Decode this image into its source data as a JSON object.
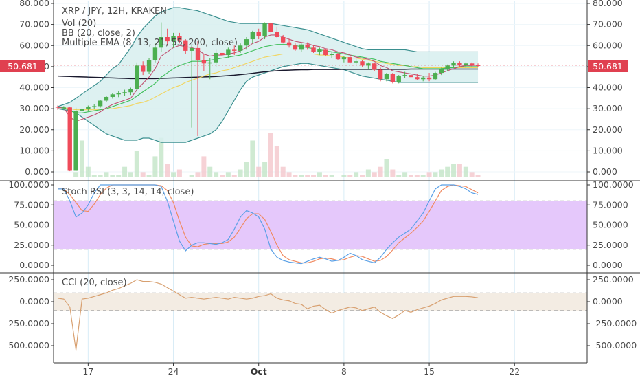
{
  "chart_data": {
    "type": "candlestick",
    "colors": {
      "up": "#4caf50",
      "down": "#ef4b5a",
      "bb": "#3a8f8f",
      "bb_fill": "#d7efee",
      "stoch_k": "#5aa0e6",
      "stoch_d": "#f08a60",
      "stoch_band": "#e5c8fb",
      "cci": "#d8a070",
      "cci_band": "#f3ece3",
      "price_line": "#e04050"
    },
    "main": {
      "title": "XRP / JPY, 12H, KRAKEN",
      "indicators": [
        "Vol (20)",
        "BB (20, close, 2)",
        "Multiple EMA (8, 13, 21, 55, 200, close)"
      ],
      "ylim": [
        -3,
        80
      ],
      "yticks": [
        "80.000",
        "70.000",
        "60.000",
        "50.000",
        "40.000",
        "30.000",
        "20.000",
        "10.000",
        "0.000"
      ],
      "last_price": "50.681",
      "last_price_value": 50.681,
      "candles": [
        [
          31.0,
          31.5,
          29.5,
          30.5
        ],
        [
          30.5,
          31.2,
          29.8,
          30.6
        ],
        [
          30.6,
          31.0,
          0.3,
          0.5
        ],
        [
          0.5,
          30.5,
          0.3,
          29.0
        ],
        [
          29.0,
          30.5,
          28.0,
          30.0
        ],
        [
          30.0,
          31.5,
          29.0,
          31.0
        ],
        [
          31.0,
          32.0,
          30.0,
          31.2
        ],
        [
          31.2,
          34.0,
          30.5,
          33.8
        ],
        [
          33.8,
          36.0,
          33.0,
          35.6
        ],
        [
          35.6,
          37.5,
          34.8,
          36.8
        ],
        [
          36.8,
          38.5,
          35.5,
          37.4
        ],
        [
          37.4,
          39.0,
          36.0,
          37.8
        ],
        [
          37.8,
          40.0,
          36.5,
          39.5
        ],
        [
          39.5,
          52.0,
          38.0,
          50.5
        ],
        [
          50.5,
          52.5,
          46.0,
          47.5
        ],
        [
          47.5,
          54.0,
          46.5,
          53.0
        ],
        [
          53.0,
          61.0,
          52.0,
          59.0
        ],
        [
          59.0,
          71.0,
          57.0,
          64.0
        ],
        [
          64.0,
          68.0,
          60.0,
          62.0
        ],
        [
          62.0,
          66.0,
          59.0,
          64.5
        ],
        [
          64.5,
          66.0,
          61.0,
          62.5
        ],
        [
          62.5,
          63.0,
          56.0,
          57.5
        ],
        [
          57.5,
          60.0,
          21.0,
          58.8
        ],
        [
          58.8,
          62.0,
          17.0,
          53.0
        ],
        [
          53.0,
          56.0,
          48.0,
          51.5
        ],
        [
          51.5,
          54.0,
          44.0,
          52.0
        ],
        [
          52.0,
          58.0,
          50.0,
          56.5
        ],
        [
          56.5,
          60.0,
          54.0,
          55.5
        ],
        [
          55.5,
          59.0,
          54.0,
          58.0
        ],
        [
          58.0,
          60.0,
          55.5,
          57.5
        ],
        [
          57.5,
          61.0,
          56.5,
          60.0
        ],
        [
          60.0,
          64.0,
          58.0,
          63.0
        ],
        [
          63.0,
          67.0,
          61.0,
          66.5
        ],
        [
          66.5,
          68.0,
          63.0,
          64.5
        ],
        [
          64.5,
          71.0,
          63.0,
          70.5
        ],
        [
          70.5,
          71.0,
          65.0,
          66.5
        ],
        [
          66.5,
          69.0,
          63.5,
          64.0
        ],
        [
          64.0,
          65.0,
          61.0,
          61.5
        ],
        [
          61.5,
          63.0,
          59.0,
          60.0
        ],
        [
          60.0,
          61.0,
          57.5,
          58.0
        ],
        [
          58.0,
          61.0,
          57.0,
          60.5
        ],
        [
          60.5,
          61.5,
          58.0,
          59.0
        ],
        [
          59.0,
          60.0,
          56.5,
          57.0
        ],
        [
          57.0,
          59.0,
          55.5,
          58.0
        ],
        [
          58.0,
          58.5,
          55.0,
          55.5
        ],
        [
          55.5,
          57.0,
          54.0,
          56.0
        ],
        [
          56.0,
          56.5,
          53.0,
          53.5
        ],
        [
          53.5,
          55.0,
          52.0,
          54.5
        ],
        [
          54.5,
          55.0,
          51.5,
          52.0
        ],
        [
          52.0,
          53.5,
          51.0,
          52.5
        ],
        [
          52.5,
          53.0,
          50.0,
          50.5
        ],
        [
          50.5,
          52.0,
          49.0,
          51.5
        ],
        [
          51.5,
          52.0,
          48.0,
          48.5
        ],
        [
          48.5,
          49.5,
          43.0,
          44.0
        ],
        [
          44.0,
          47.0,
          43.0,
          46.5
        ],
        [
          46.5,
          47.0,
          42.0,
          42.5
        ],
        [
          42.5,
          46.0,
          42.0,
          45.5
        ],
        [
          45.5,
          47.5,
          44.5,
          46.0
        ],
        [
          46.0,
          47.0,
          44.5,
          45.0
        ],
        [
          45.0,
          46.5,
          43.5,
          44.0
        ],
        [
          44.0,
          45.5,
          43.0,
          44.8
        ],
        [
          44.8,
          47.0,
          43.0,
          44.0
        ],
        [
          44.0,
          47.5,
          43.5,
          47.0
        ],
        [
          47.0,
          49.5,
          46.0,
          49.0
        ],
        [
          49.0,
          51.0,
          48.0,
          50.5
        ],
        [
          50.5,
          52.5,
          49.5,
          51.8
        ],
        [
          51.8,
          52.5,
          50.0,
          50.5
        ],
        [
          50.5,
          52.0,
          49.5,
          51.5
        ],
        [
          51.5,
          52.0,
          50.0,
          50.8
        ],
        [
          50.8,
          51.5,
          50.0,
          50.7
        ]
      ],
      "volume": [
        0,
        0,
        0,
        2,
        14,
        4,
        1,
        1,
        2,
        1,
        1,
        4,
        2,
        10,
        2,
        1,
        8,
        15,
        5,
        2,
        3,
        0,
        1,
        2,
        8,
        4,
        2,
        1,
        2,
        1,
        3,
        6,
        14,
        4,
        6,
        17,
        12,
        4,
        2,
        1,
        1,
        1,
        1,
        2,
        1,
        1,
        0,
        1,
        1,
        2,
        1,
        3,
        2,
        4,
        7,
        3,
        1,
        2,
        1,
        1,
        1,
        2,
        2,
        3,
        4,
        5,
        5,
        4,
        2,
        1
      ],
      "bb_upper": [
        31,
        32,
        33,
        35,
        37,
        39,
        41,
        43,
        46,
        49,
        51,
        55,
        59,
        64,
        68,
        71,
        74,
        76,
        77,
        78,
        78,
        77.5,
        77,
        76.5,
        75.5,
        74.5,
        73.5,
        72.5,
        71.5,
        71,
        70.5,
        70.5,
        70.5,
        70.5,
        70.5,
        70.5,
        70,
        69.5,
        69,
        68.5,
        68,
        67.5,
        66.5,
        65.5,
        64.5,
        63.5,
        62.5,
        61.5,
        60.5,
        59.5,
        58.5,
        58,
        58,
        58,
        58,
        58,
        58,
        58,
        57.5,
        57,
        57,
        57,
        57,
        57,
        57,
        57,
        57,
        57,
        57,
        57
      ],
      "bb_lower": [
        30,
        29.5,
        29,
        28,
        26,
        24,
        22,
        20,
        18,
        17,
        16,
        15,
        15,
        15,
        16,
        16,
        15,
        14,
        14,
        14,
        14,
        14,
        15,
        16,
        17,
        18,
        20,
        24,
        29,
        34,
        39,
        43,
        45,
        46,
        47,
        48,
        49,
        50,
        50.5,
        51,
        51.5,
        51.5,
        51,
        50.5,
        50,
        49.5,
        49,
        48.5,
        47.5,
        46.5,
        45.5,
        45,
        44.5,
        44,
        43.5,
        43,
        42.5,
        42.5,
        42.5,
        42.5,
        42.5,
        42.5,
        42.5,
        42.5,
        42.5,
        42.5,
        42.5,
        42.5,
        42.5,
        42.5
      ],
      "ema8": [
        30.5,
        30.4,
        26,
        24,
        25,
        26,
        27,
        28.5,
        30.5,
        32,
        33,
        34,
        35,
        39,
        42,
        45,
        49,
        55,
        57,
        59,
        60,
        59.5,
        59,
        58,
        56,
        55,
        55.5,
        55.5,
        56,
        56.5,
        57.5,
        59,
        61,
        62,
        64,
        65,
        65,
        64,
        63,
        62,
        61.5,
        61,
        60,
        59.5,
        58.5,
        58,
        57,
        56.5,
        55.5,
        54.5,
        54,
        53.5,
        52.5,
        50.5,
        49.5,
        48,
        47.5,
        47,
        46.5,
        46,
        45.5,
        45.5,
        46,
        47,
        48,
        49,
        50,
        50.5,
        50.5,
        50.7
      ],
      "ema21": [
        30.5,
        30.5,
        29,
        28,
        28,
        28.5,
        29,
        29.5,
        30,
        31,
        32,
        33,
        34,
        36,
        38,
        40,
        42,
        45,
        47,
        49,
        50.5,
        51.5,
        52.5,
        52.5,
        52.5,
        53,
        53.5,
        54,
        54.5,
        55,
        55.5,
        56.5,
        57.5,
        58.5,
        59.5,
        60,
        60.5,
        60.5,
        60.5,
        60,
        59.5,
        59,
        58.5,
        58,
        57.5,
        57,
        56.5,
        56,
        55.5,
        55,
        54.5,
        54,
        53.5,
        52.5,
        52,
        51.5,
        51,
        50.5,
        50,
        49.5,
        49,
        49,
        49,
        49,
        49.5,
        49.5,
        50,
        50,
        50,
        50
      ],
      "ema55": [
        30.5,
        30.5,
        30,
        29.5,
        29.5,
        29.5,
        29.5,
        29.5,
        30,
        30,
        30.5,
        31,
        31.5,
        32.5,
        33,
        34,
        35.5,
        37,
        38.5,
        40,
        41,
        42.5,
        43.5,
        44.5,
        45.5,
        46.5,
        47,
        48,
        48.5,
        49.5,
        50.5,
        51.5,
        52.5,
        53.5,
        54.5,
        55,
        55.5,
        56,
        56,
        56,
        56,
        56,
        56,
        55.5,
        55.5,
        55,
        55,
        54.5,
        54,
        54,
        53.5,
        53,
        52.5,
        52,
        51.5,
        51,
        50.5,
        50.5,
        50,
        50,
        49.5,
        49.5,
        49.5,
        49.5,
        49.5,
        49.5,
        49.5,
        49.5,
        49.5,
        49.5
      ],
      "ema200": [
        45.5,
        45.4,
        45.3,
        45.2,
        45.1,
        45,
        44.9,
        44.8,
        44.7,
        44.6,
        44.5,
        44.4,
        44.3,
        44.3,
        44.3,
        44.3,
        44.3,
        44.4,
        44.5,
        44.6,
        44.7,
        44.8,
        44.9,
        45,
        45.1,
        45.2,
        45.3,
        45.5,
        45.7,
        45.9,
        46.2,
        46.5,
        46.8,
        47.2,
        47.5,
        47.8,
        48,
        48.2,
        48.3,
        48.4,
        48.5,
        48.5,
        48.6,
        48.6,
        48.6,
        48.6,
        48.6,
        48.7,
        48.7,
        48.7,
        48.7,
        48.7,
        48.7,
        48.7,
        48.7,
        48.7,
        48.7,
        48.7,
        48.8,
        48.8,
        48.8,
        48.8,
        48.8,
        48.8,
        48.8,
        48.8,
        48.8,
        48.8,
        48.8,
        48.8
      ]
    },
    "stoch": {
      "title": "Stoch RSI (3, 3, 14, 14, close)",
      "ylim": [
        0,
        100
      ],
      "yticks": [
        "100.0000",
        "75.0000",
        "50.0000",
        "25.0000",
        "0.0000"
      ],
      "band": [
        20,
        80
      ],
      "k": [
        95,
        95,
        80,
        60,
        65,
        75,
        90,
        100,
        100,
        100,
        100,
        100,
        100,
        100,
        100,
        100,
        100,
        98,
        80,
        55,
        30,
        18,
        25,
        28,
        28,
        27,
        26,
        28,
        32,
        45,
        60,
        68,
        65,
        60,
        45,
        20,
        10,
        6,
        4,
        3,
        2,
        5,
        8,
        10,
        8,
        5,
        6,
        10,
        15,
        12,
        7,
        5,
        3,
        10,
        20,
        28,
        35,
        40,
        45,
        55,
        65,
        80,
        95,
        100,
        100,
        100,
        98,
        95,
        90,
        88
      ],
      "d": [
        95,
        95,
        88,
        78,
        68,
        67,
        76,
        88,
        96,
        100,
        100,
        100,
        100,
        100,
        100,
        100,
        100,
        99,
        93,
        78,
        55,
        35,
        24,
        23,
        26,
        27,
        27,
        27,
        29,
        35,
        46,
        58,
        64,
        64,
        57,
        42,
        25,
        12,
        7,
        5,
        3,
        3,
        5,
        8,
        9,
        8,
        6,
        7,
        10,
        12,
        11,
        8,
        5,
        6,
        11,
        19,
        28,
        34,
        40,
        47,
        55,
        67,
        80,
        93,
        98,
        100,
        99,
        98,
        94,
        90
      ]
    },
    "cci": {
      "title": "CCI (20, close)",
      "ylim": [
        -580,
        300
      ],
      "yticks": [
        "250.0000",
        "0.0000",
        "-250.0000",
        "-500.0000"
      ],
      "band": [
        -100,
        100
      ],
      "values": [
        40,
        30,
        -60,
        -550,
        30,
        40,
        60,
        80,
        100,
        130,
        150,
        180,
        210,
        250,
        230,
        230,
        220,
        200,
        160,
        120,
        80,
        40,
        50,
        40,
        30,
        40,
        50,
        40,
        30,
        50,
        40,
        30,
        40,
        60,
        70,
        90,
        40,
        20,
        10,
        -20,
        -30,
        -80,
        -50,
        -40,
        -90,
        -130,
        -100,
        -80,
        -60,
        -70,
        -100,
        -80,
        -60,
        -120,
        -160,
        -190,
        -150,
        -100,
        -120,
        -90,
        -70,
        -50,
        -20,
        20,
        40,
        60,
        60,
        60,
        55,
        45
      ]
    },
    "x_labels": [
      {
        "label": "17",
        "i": 5,
        "bold": false
      },
      {
        "label": "24",
        "i": 19,
        "bold": false
      },
      {
        "label": "Oct",
        "i": 33,
        "bold": true
      },
      {
        "label": "8",
        "i": 47,
        "bold": false
      },
      {
        "label": "15",
        "i": 61,
        "bold": false
      },
      {
        "label": "22",
        "i": 75,
        "bold": false
      }
    ]
  }
}
